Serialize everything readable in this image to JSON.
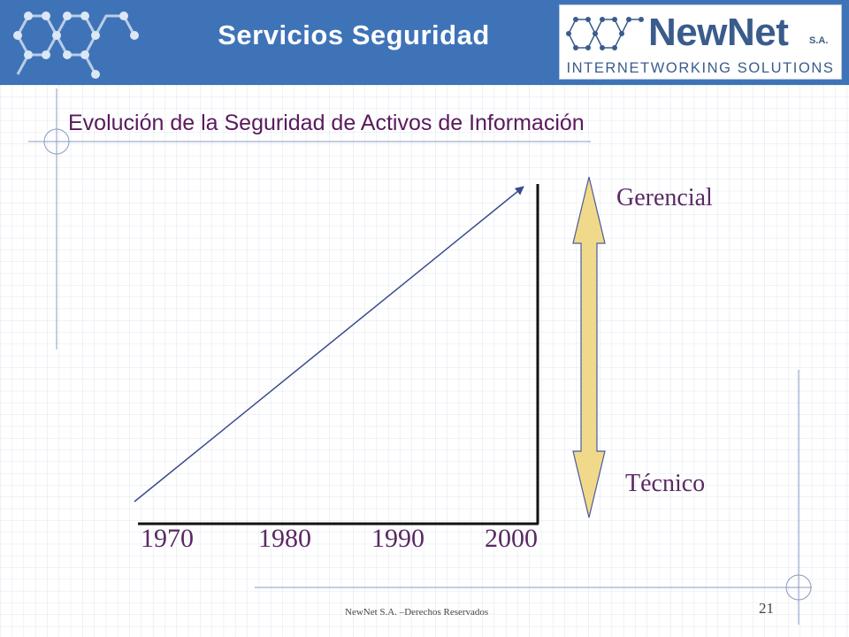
{
  "header": {
    "title": "Servicios Seguridad"
  },
  "logo": {
    "brand": "NewNet",
    "suffix": "S.A.",
    "tagline": "INTERNETWORKING SOLUTIONS"
  },
  "subtitle": "Evolución de la Seguridad de Activos de Información",
  "diagram": {
    "years": [
      "1970",
      "1980",
      "1990",
      "2000"
    ],
    "scale_top": "Gerencial",
    "scale_bottom": "Técnico"
  },
  "footer": {
    "text": "NewNet S.A. –Derechos Reservados",
    "page": "21"
  },
  "colors": {
    "header_bg": "#3f73b8",
    "title_text": "#5a1a5c",
    "label_text": "#5a2a63",
    "arrow_fill": "#f0d98a",
    "line": "#3a4a8c"
  }
}
